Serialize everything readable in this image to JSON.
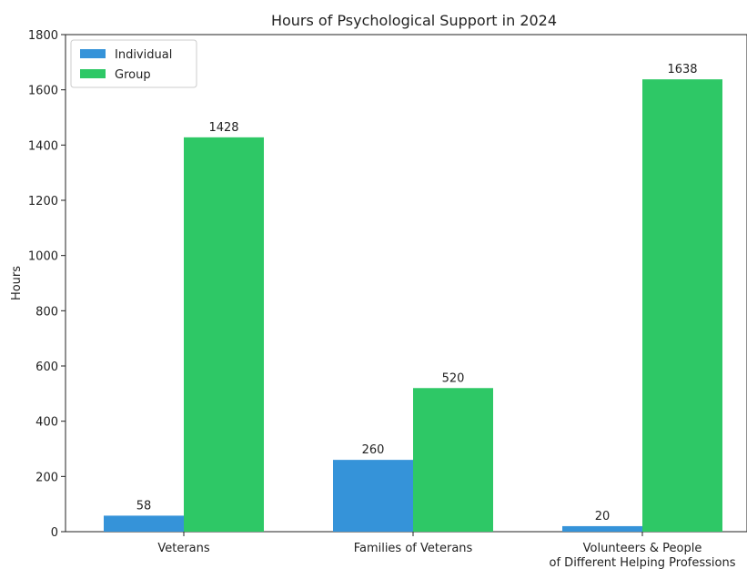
{
  "chart_data": {
    "type": "bar",
    "title": "Hours of Psychological Support in 2024",
    "xlabel": "",
    "ylabel": "Hours",
    "categories": [
      "Veterans",
      "Families of Veterans",
      "Volunteers & People\nof Different Helping Professions"
    ],
    "series": [
      {
        "name": "Individual",
        "color": "#3593d9",
        "values": [
          58,
          260,
          20
        ]
      },
      {
        "name": "Group",
        "color": "#2ec866",
        "values": [
          1428,
          520,
          1638
        ]
      }
    ],
    "ylim": [
      0,
      1800
    ],
    "yticks": [
      0,
      200,
      400,
      600,
      800,
      1000,
      1200,
      1400,
      1600,
      1800
    ],
    "grid": false,
    "legend_position": "upper-left",
    "data_labels": true
  }
}
